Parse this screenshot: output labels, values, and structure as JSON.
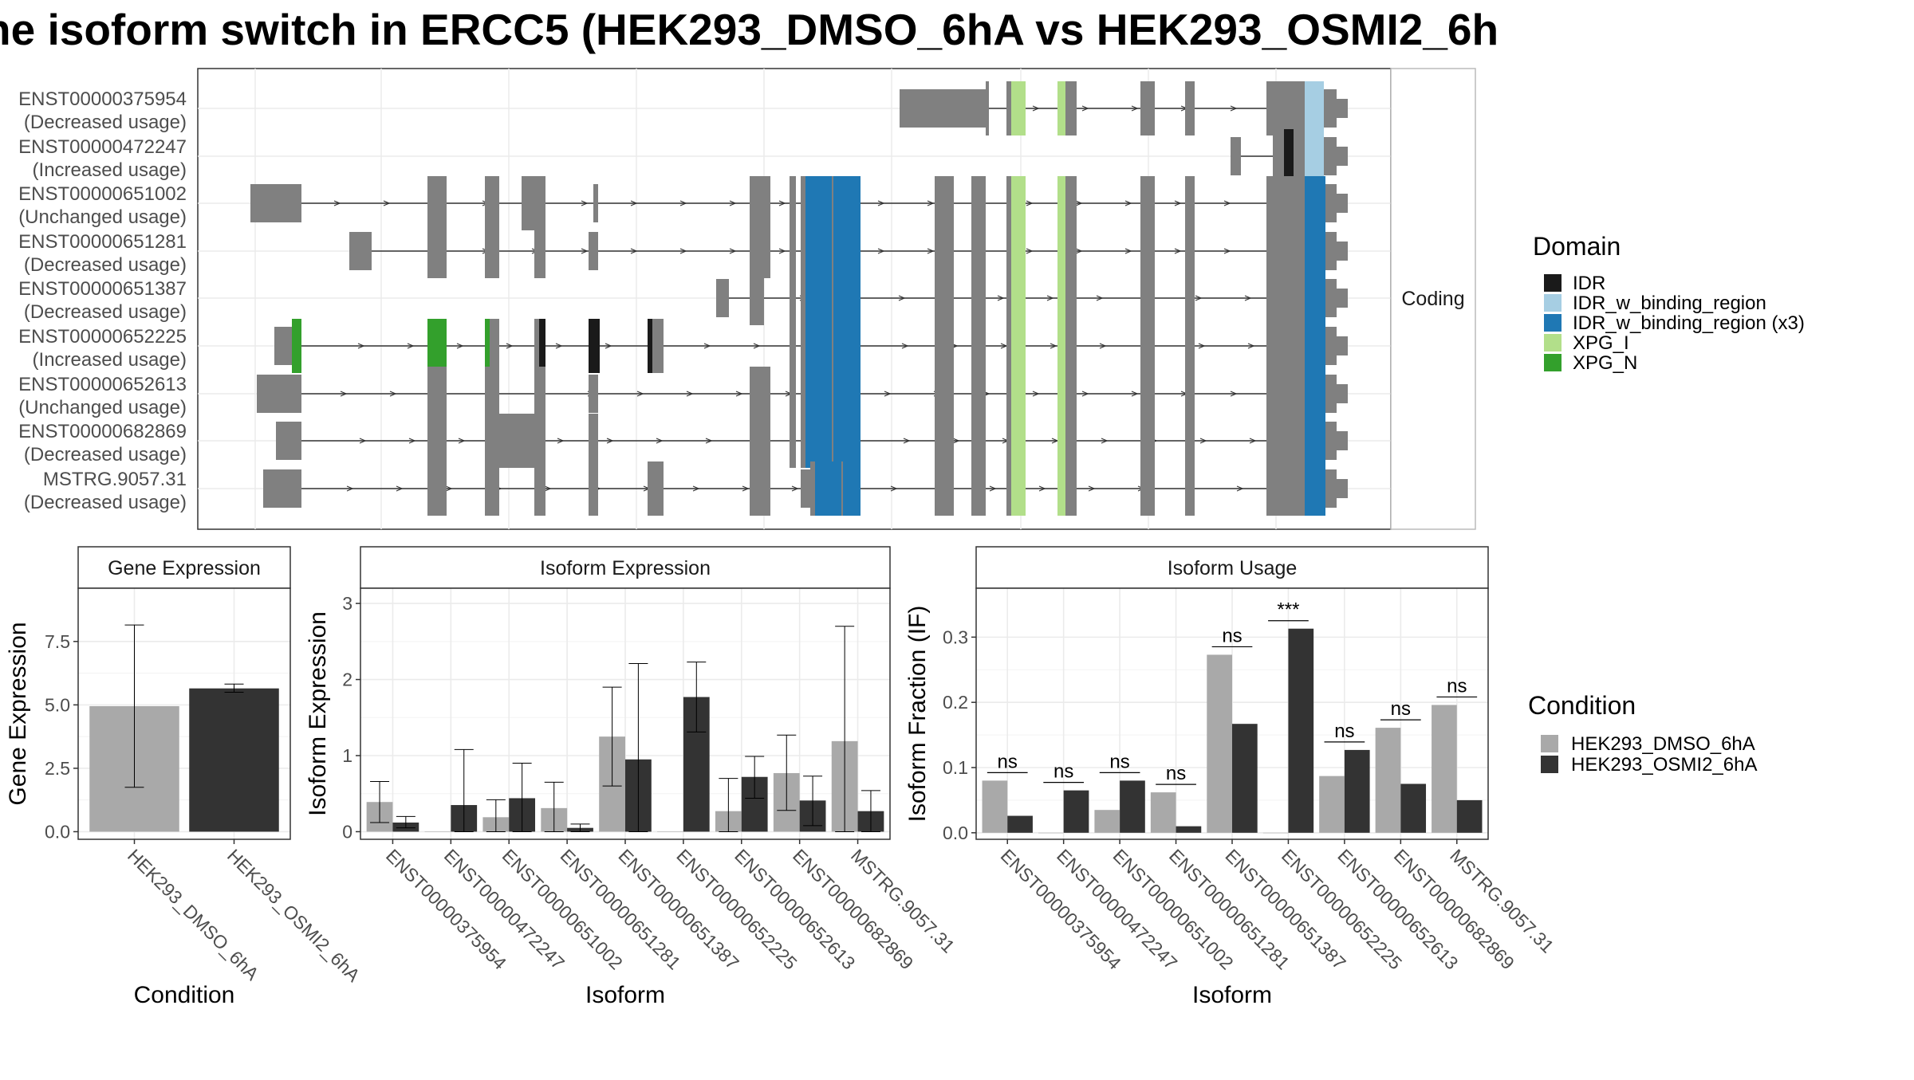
{
  "title": "ne isoform switch in ERCC5 (HEK293_DMSO_6hA vs HEK293_OSMI2_6h",
  "colors": {
    "exon": "#808080",
    "IDR": "#1a1a1a",
    "IDR_w_binding_region": "#a6cee3",
    "IDR_w_binding_region (x3)": "#1f78b4",
    "XPG_I": "#b2df8a",
    "XPG_N": "#33a02c",
    "HEK293_DMSO_6hA": "#a9a9a9",
    "HEK293_OSMI2_6hA": "#333333",
    "grid": "#ebebeb",
    "panel_border": "#333333",
    "strip_fill": "#ffffff"
  },
  "structure_panel": {
    "strip_label": "Coding",
    "transcripts": [
      {
        "id": "ENST00000375954",
        "usage": "(Decreased usage)"
      },
      {
        "id": "ENST00000472247",
        "usage": "(Increased usage)"
      },
      {
        "id": "ENST00000651002",
        "usage": "(Unchanged usage)"
      },
      {
        "id": "ENST00000651281",
        "usage": "(Decreased usage)"
      },
      {
        "id": "ENST00000651387",
        "usage": "(Decreased usage)"
      },
      {
        "id": "ENST00000652225",
        "usage": "(Increased usage)"
      },
      {
        "id": "ENST00000652613",
        "usage": "(Unchanged usage)"
      },
      {
        "id": "ENST00000682869",
        "usage": "(Decreased usage)"
      },
      {
        "id": "MSTRG.9057.31",
        "usage": "(Decreased usage)"
      }
    ]
  },
  "domain_legend": {
    "title": "Domain",
    "items": [
      "IDR",
      "IDR_w_binding_region",
      "IDR_w_binding_region (x3)",
      "XPG_I",
      "XPG_N"
    ]
  },
  "condition_legend": {
    "title": "Condition",
    "items": [
      "HEK293_DMSO_6hA",
      "HEK293_OSMI2_6hA"
    ]
  },
  "chart_data": [
    {
      "type": "bar",
      "title": "Gene Expression",
      "xlabel": "Condition",
      "ylabel": "Gene Expression",
      "ylim": [
        -0.3,
        9.6
      ],
      "yticks": [
        "0.0",
        "2.5",
        "5.0",
        "7.5"
      ],
      "categories": [
        "HEK293_DMSO_6hA",
        "HEK293_OSMI2_6hA"
      ],
      "values": [
        4.95,
        5.65
      ],
      "err_low": [
        1.75,
        5.5
      ],
      "err_high": [
        8.15,
        5.82
      ]
    },
    {
      "type": "bar",
      "title": "Isoform Expression",
      "xlabel": "Isoform",
      "ylabel": "Isoform Expression",
      "ylim": [
        -0.1,
        3.2
      ],
      "yticks": [
        "0",
        "1",
        "2",
        "3"
      ],
      "categories": [
        "ENST00000375954",
        "ENST00000472247",
        "ENST00000651002",
        "ENST00000651281",
        "ENST00000651387",
        "ENST00000652225",
        "ENST00000652613",
        "ENST00000682869",
        "MSTRG.9057.31"
      ],
      "series": [
        {
          "name": "HEK293_DMSO_6hA",
          "values": [
            0.39,
            0.0,
            0.19,
            0.31,
            1.25,
            0.0,
            0.27,
            0.77,
            1.19
          ],
          "err_low": [
            0.12,
            0.0,
            0.0,
            0.0,
            0.6,
            0.0,
            0.0,
            0.28,
            0.0
          ],
          "err_high": [
            0.66,
            0.0,
            0.42,
            0.65,
            1.9,
            0.0,
            0.7,
            1.27,
            2.7
          ]
        },
        {
          "name": "HEK293_OSMI2_6hA",
          "values": [
            0.12,
            0.35,
            0.44,
            0.05,
            0.95,
            1.77,
            0.72,
            0.41,
            0.27
          ],
          "err_low": [
            0.05,
            0.0,
            0.0,
            0.0,
            0.0,
            1.31,
            0.44,
            0.08,
            0.0
          ],
          "err_high": [
            0.2,
            1.08,
            0.9,
            0.1,
            2.21,
            2.23,
            0.99,
            0.73,
            0.54
          ]
        }
      ]
    },
    {
      "type": "bar",
      "title": "Isoform Usage",
      "xlabel": "Isoform",
      "ylabel": "Isoform Fraction (IF)",
      "ylim": [
        -0.01,
        0.375
      ],
      "yticks": [
        "0.0",
        "0.1",
        "0.2",
        "0.3"
      ],
      "categories": [
        "ENST00000375954",
        "ENST00000472247",
        "ENST00000651002",
        "ENST00000651281",
        "ENST00000651387",
        "ENST00000652225",
        "ENST00000652613",
        "ENST00000682869",
        "MSTRG.9057.31"
      ],
      "series": [
        {
          "name": "HEK293_DMSO_6hA",
          "values": [
            0.08,
            0.0,
            0.035,
            0.062,
            0.273,
            0.0,
            0.087,
            0.161,
            0.196
          ]
        },
        {
          "name": "HEK293_OSMI2_6hA",
          "values": [
            0.026,
            0.065,
            0.08,
            0.01,
            0.167,
            0.313,
            0.127,
            0.075,
            0.05
          ]
        }
      ],
      "significance": [
        "ns",
        "ns",
        "ns",
        "ns",
        "ns",
        "***",
        "ns",
        "ns",
        "ns"
      ]
    }
  ]
}
